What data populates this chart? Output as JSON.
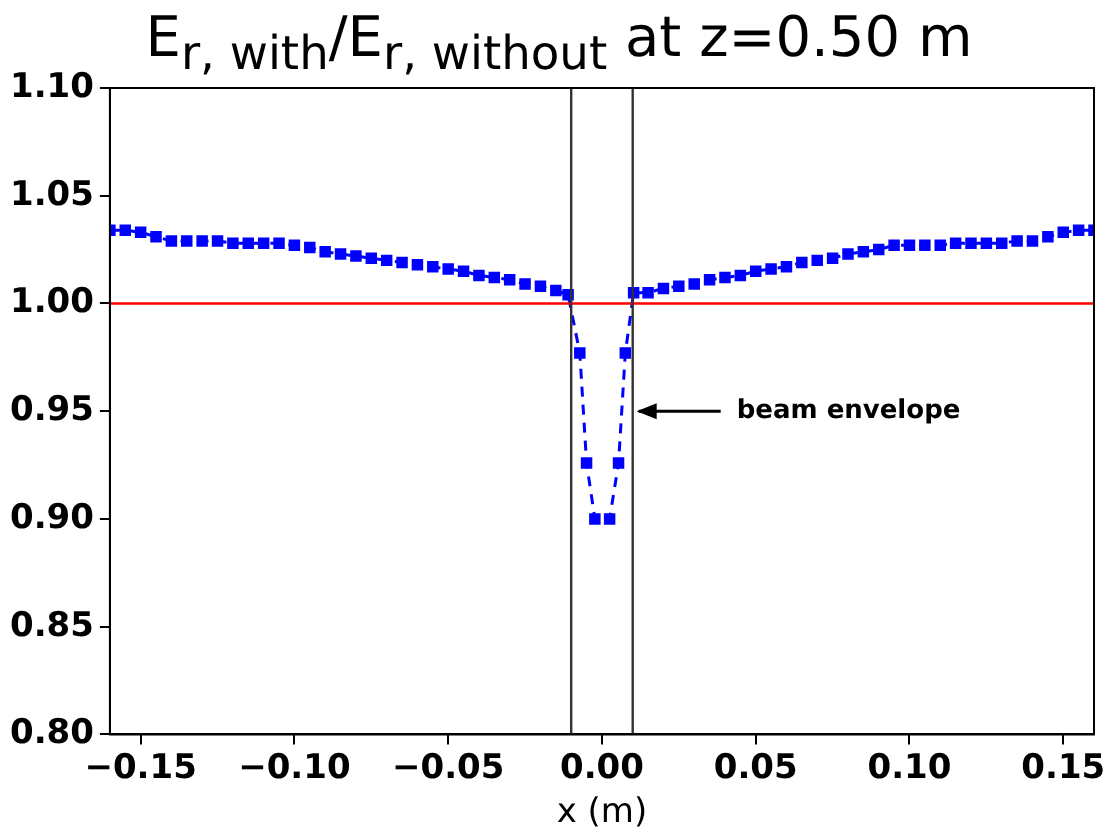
{
  "chart_data": {
    "type": "line",
    "title": "E$_{r, with}$/E$_{r, without}$ at z=0.50 m",
    "xlabel": "x (m)",
    "x": [
      -0.16,
      -0.155,
      -0.15,
      -0.145,
      -0.14,
      -0.135,
      -0.13,
      -0.125,
      -0.12,
      -0.115,
      -0.11,
      -0.105,
      -0.1,
      -0.095,
      -0.09,
      -0.085,
      -0.08,
      -0.075,
      -0.07,
      -0.065,
      -0.06,
      -0.055,
      -0.05,
      -0.045,
      -0.04,
      -0.035,
      -0.03,
      -0.025,
      -0.02,
      -0.015,
      -0.011,
      -0.0072,
      -0.005,
      -0.0023,
      0.0025,
      0.0054,
      0.0076,
      0.0103,
      0.015,
      0.02,
      0.025,
      0.03,
      0.035,
      0.04,
      0.045,
      0.05,
      0.055,
      0.06,
      0.065,
      0.07,
      0.075,
      0.08,
      0.085,
      0.09,
      0.095,
      0.1,
      0.105,
      0.11,
      0.115,
      0.12,
      0.125,
      0.13,
      0.135,
      0.14,
      0.145,
      0.15,
      0.155,
      0.16
    ],
    "series": [
      {
        "color": "#0000ff",
        "values": [
          1.034,
          1.034,
          1.033,
          1.031,
          1.029,
          1.029,
          1.029,
          1.029,
          1.028,
          1.028,
          1.028,
          1.028,
          1.027,
          1.026,
          1.024,
          1.023,
          1.022,
          1.021,
          1.02,
          1.019,
          1.018,
          1.017,
          1.016,
          1.015,
          1.013,
          1.012,
          1.011,
          1.009,
          1.008,
          1.006,
          1.004,
          0.977,
          0.926,
          0.9,
          0.9,
          0.926,
          0.977,
          1.005,
          1.005,
          1.007,
          1.008,
          1.009,
          1.011,
          1.012,
          1.013,
          1.015,
          1.016,
          1.017,
          1.019,
          1.02,
          1.021,
          1.023,
          1.024,
          1.025,
          1.027,
          1.027,
          1.027,
          1.027,
          1.028,
          1.028,
          1.028,
          1.028,
          1.029,
          1.029,
          1.031,
          1.033,
          1.034,
          1.034
        ]
      }
    ],
    "xlim": [
      -0.16,
      0.16
    ],
    "ylim": [
      0.8,
      1.1
    ],
    "xticks": [
      {
        "value": -0.15,
        "label": "−0.15"
      },
      {
        "value": -0.1,
        "label": "−0.10"
      },
      {
        "value": -0.05,
        "label": "−0.05"
      },
      {
        "value": 0,
        "label": "0.00"
      },
      {
        "value": 0.05,
        "label": "0.05"
      },
      {
        "value": 0.1,
        "label": "0.10"
      },
      {
        "value": 0.15,
        "label": "0.15"
      }
    ],
    "yticks": [
      {
        "value": 0.8,
        "label": "0.80"
      },
      {
        "value": 0.85,
        "label": "0.85"
      },
      {
        "value": 0.9,
        "label": "0.90"
      },
      {
        "value": 0.95,
        "label": "0.95"
      },
      {
        "value": 1.0,
        "label": "1.00"
      },
      {
        "value": 1.05,
        "label": "1.05"
      },
      {
        "value": 1.1,
        "label": "1.10"
      }
    ],
    "ref_lines": [
      {
        "axis": "y",
        "value": 1.0,
        "color": "#ff0000"
      },
      {
        "axis": "x",
        "value": -0.01,
        "color": "#333333"
      },
      {
        "axis": "x",
        "value": 0.01,
        "color": "#333333"
      }
    ],
    "annotations": [
      {
        "text": "beam envelope",
        "x": 0.01,
        "y": 0.95
      }
    ],
    "grid": false,
    "legend": false,
    "marker": "square",
    "line_style": "dashed"
  }
}
